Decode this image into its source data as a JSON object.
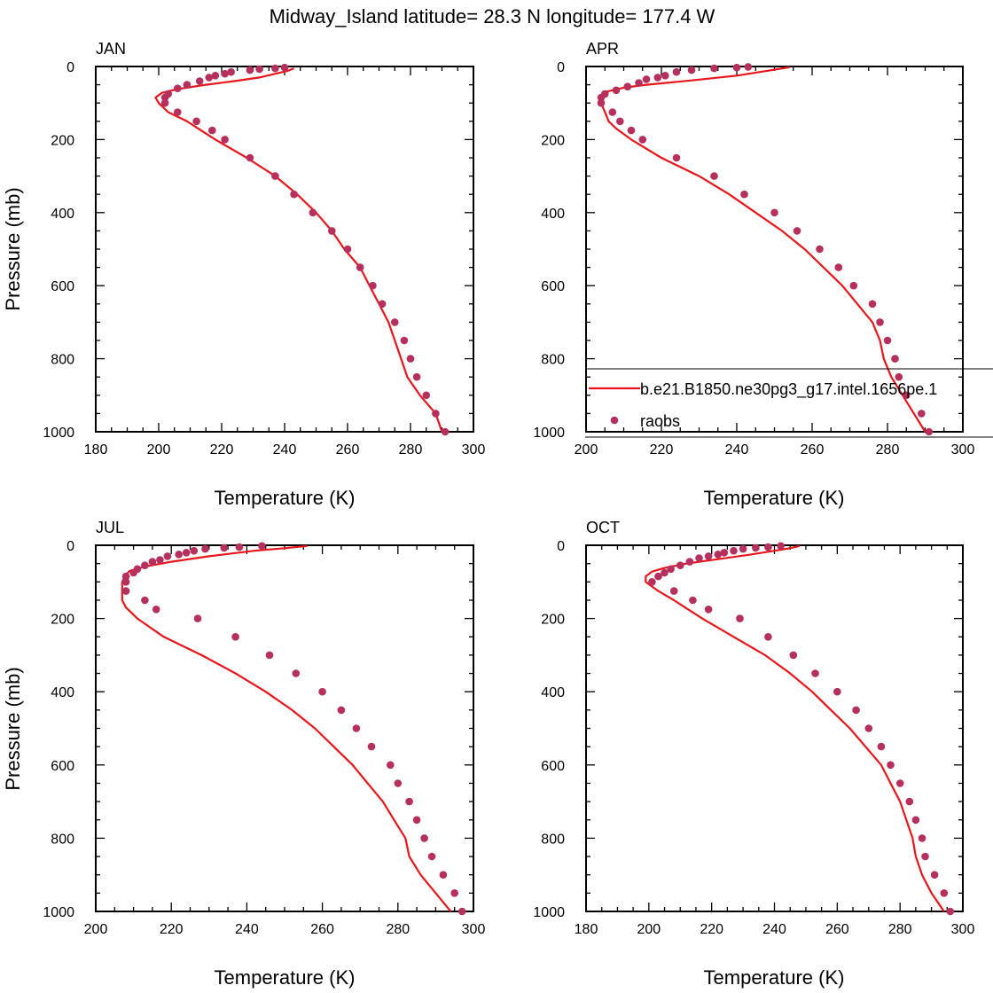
{
  "figure_title": "Midway_Island  latitude= 28.3 N longitude= 177.4 W",
  "colors": {
    "model_line": "#e8161b",
    "raobs_marker": "#b5305c",
    "axis": "#000000"
  },
  "chart_data": [
    {
      "type": "line",
      "panel_label": "JAN",
      "xlabel": "Temperature (K)",
      "ylabel": "Pressure (mb)",
      "xlim": [
        180,
        300
      ],
      "ylim": [
        1000,
        0
      ],
      "xticks": [
        180,
        200,
        220,
        240,
        260,
        280,
        300
      ],
      "yticks": [
        0,
        200,
        400,
        600,
        800,
        1000
      ],
      "series": [
        {
          "name": "b.e21.B1850.ne30pg3_g17.intel.1656pe.1",
          "kind": "line",
          "points": [
            [
              290,
              1000
            ],
            [
              288,
              950
            ],
            [
              283,
              900
            ],
            [
              279,
              850
            ],
            [
              277,
              800
            ],
            [
              275,
              750
            ],
            [
              273,
              700
            ],
            [
              270,
              650
            ],
            [
              267,
              600
            ],
            [
              264,
              550
            ],
            [
              259,
              500
            ],
            [
              255,
              450
            ],
            [
              250,
              400
            ],
            [
              244,
              350
            ],
            [
              237,
              300
            ],
            [
              228,
              250
            ],
            [
              218,
              200
            ],
            [
              209,
              150
            ],
            [
              203,
              125
            ],
            [
              200,
              100
            ],
            [
              199,
              85
            ],
            [
              201,
              72
            ],
            [
              206,
              62
            ],
            [
              215,
              50
            ],
            [
              224,
              40
            ],
            [
              232,
              30
            ],
            [
              237,
              20
            ],
            [
              241,
              12
            ],
            [
              243,
              5
            ]
          ]
        },
        {
          "name": "raobs",
          "kind": "scatter",
          "points": [
            [
              291,
              1000
            ],
            [
              288,
              950
            ],
            [
              285,
              900
            ],
            [
              282,
              850
            ],
            [
              280,
              800
            ],
            [
              278,
              750
            ],
            [
              275,
              700
            ],
            [
              271,
              650
            ],
            [
              268,
              600
            ],
            [
              264,
              550
            ],
            [
              260,
              500
            ],
            [
              255,
              450
            ],
            [
              249,
              400
            ],
            [
              243,
              350
            ],
            [
              237,
              300
            ],
            [
              229,
              250
            ],
            [
              221,
              200
            ],
            [
              217,
              175
            ],
            [
              212,
              150
            ],
            [
              206,
              125
            ],
            [
              202,
              100
            ],
            [
              202,
              85
            ],
            [
              203,
              75
            ],
            [
              206,
              60
            ],
            [
              209,
              50
            ],
            [
              213,
              40
            ],
            [
              216,
              30
            ],
            [
              218,
              25
            ],
            [
              221,
              20
            ],
            [
              223,
              15
            ],
            [
              229,
              10
            ],
            [
              232,
              7
            ],
            [
              237,
              5
            ],
            [
              240,
              3
            ]
          ]
        }
      ]
    },
    {
      "type": "line",
      "panel_label": "APR",
      "xlabel": "Temperature (K)",
      "ylabel": "",
      "xlim": [
        200,
        300
      ],
      "ylim": [
        1000,
        0
      ],
      "xticks": [
        200,
        220,
        240,
        260,
        280,
        300
      ],
      "yticks": [
        0,
        200,
        400,
        600,
        800,
        1000
      ],
      "series": [
        {
          "name": "b.e21.B1850.ne30pg3_g17.intel.1656pe.1",
          "kind": "line",
          "points": [
            [
              290,
              1000
            ],
            [
              287,
              950
            ],
            [
              284,
              900
            ],
            [
              281,
              850
            ],
            [
              279,
              800
            ],
            [
              278,
              750
            ],
            [
              276,
              700
            ],
            [
              272,
              650
            ],
            [
              268,
              600
            ],
            [
              263,
              550
            ],
            [
              258,
              500
            ],
            [
              252,
              450
            ],
            [
              245,
              400
            ],
            [
              238,
              350
            ],
            [
              230,
              300
            ],
            [
              220,
              250
            ],
            [
              212,
              200
            ],
            [
              208,
              170
            ],
            [
              206,
              150
            ],
            [
              205,
              125
            ],
            [
              204,
              100
            ],
            [
              204,
              80
            ],
            [
              205,
              70
            ],
            [
              210,
              58
            ],
            [
              216,
              50
            ],
            [
              228,
              38
            ],
            [
              240,
              25
            ],
            [
              248,
              12
            ],
            [
              254,
              2
            ]
          ]
        },
        {
          "name": "raobs",
          "kind": "scatter",
          "points": [
            [
              291,
              1000
            ],
            [
              289,
              950
            ],
            [
              285,
              900
            ],
            [
              283,
              850
            ],
            [
              282,
              800
            ],
            [
              280,
              750
            ],
            [
              278,
              700
            ],
            [
              276,
              650
            ],
            [
              271,
              600
            ],
            [
              267,
              550
            ],
            [
              262,
              500
            ],
            [
              256,
              450
            ],
            [
              250,
              400
            ],
            [
              242,
              350
            ],
            [
              234,
              300
            ],
            [
              224,
              250
            ],
            [
              215,
              200
            ],
            [
              212,
              175
            ],
            [
              209,
              150
            ],
            [
              207,
              125
            ],
            [
              204,
              100
            ],
            [
              204,
              85
            ],
            [
              205,
              75
            ],
            [
              208,
              65
            ],
            [
              211,
              55
            ],
            [
              214,
              45
            ],
            [
              216,
              35
            ],
            [
              219,
              30
            ],
            [
              221,
              25
            ],
            [
              224,
              15
            ],
            [
              228,
              10
            ],
            [
              234,
              5
            ],
            [
              240,
              3
            ],
            [
              243,
              1
            ]
          ]
        }
      ]
    },
    {
      "type": "line",
      "panel_label": "JUL",
      "xlabel": "Temperature (K)",
      "ylabel": "Pressure (mb)",
      "xlim": [
        200,
        300
      ],
      "ylim": [
        1000,
        0
      ],
      "xticks": [
        200,
        220,
        240,
        260,
        280,
        300
      ],
      "yticks": [
        0,
        200,
        400,
        600,
        800,
        1000
      ],
      "series": [
        {
          "name": "b.e21.B1850.ne30pg3_g17.intel.1656pe.1",
          "kind": "line",
          "points": [
            [
              294,
              1000
            ],
            [
              290,
              950
            ],
            [
              286,
              900
            ],
            [
              283,
              850
            ],
            [
              282,
              800
            ],
            [
              279,
              750
            ],
            [
              276,
              700
            ],
            [
              272,
              650
            ],
            [
              268,
              600
            ],
            [
              263,
              550
            ],
            [
              258,
              500
            ],
            [
              252,
              450
            ],
            [
              245,
              400
            ],
            [
              237,
              350
            ],
            [
              228,
              300
            ],
            [
              218,
              250
            ],
            [
              211,
              200
            ],
            [
              208,
              170
            ],
            [
              207,
              150
            ],
            [
              207,
              125
            ],
            [
              207,
              100
            ],
            [
              208,
              80
            ],
            [
              209,
              70
            ],
            [
              213,
              58
            ],
            [
              220,
              45
            ],
            [
              230,
              30
            ],
            [
              242,
              15
            ],
            [
              250,
              8
            ],
            [
              256,
              2
            ]
          ]
        },
        {
          "name": "raobs",
          "kind": "scatter",
          "points": [
            [
              297,
              1000
            ],
            [
              295,
              950
            ],
            [
              292,
              900
            ],
            [
              289,
              850
            ],
            [
              287,
              800
            ],
            [
              285,
              750
            ],
            [
              283,
              700
            ],
            [
              280,
              650
            ],
            [
              278,
              600
            ],
            [
              273,
              550
            ],
            [
              269,
              500
            ],
            [
              265,
              450
            ],
            [
              260,
              400
            ],
            [
              253,
              350
            ],
            [
              246,
              300
            ],
            [
              237,
              250
            ],
            [
              227,
              200
            ],
            [
              216,
              175
            ],
            [
              213,
              150
            ],
            [
              208,
              125
            ],
            [
              208,
              100
            ],
            [
              208,
              85
            ],
            [
              210,
              75
            ],
            [
              211,
              65
            ],
            [
              213,
              55
            ],
            [
              215,
              45
            ],
            [
              217,
              40
            ],
            [
              219,
              30
            ],
            [
              222,
              25
            ],
            [
              224,
              20
            ],
            [
              226,
              15
            ],
            [
              229,
              10
            ],
            [
              234,
              7
            ],
            [
              238,
              5
            ],
            [
              244,
              2
            ]
          ]
        }
      ]
    },
    {
      "type": "line",
      "panel_label": "OCT",
      "xlabel": "Temperature (K)",
      "ylabel": "",
      "xlim": [
        180,
        300
      ],
      "ylim": [
        1000,
        0
      ],
      "xticks": [
        180,
        200,
        220,
        240,
        260,
        280,
        300
      ],
      "yticks": [
        0,
        200,
        400,
        600,
        800,
        1000
      ],
      "series": [
        {
          "name": "b.e21.B1850.ne30pg3_g17.intel.1656pe.1",
          "kind": "line",
          "points": [
            [
              294,
              1000
            ],
            [
              290,
              950
            ],
            [
              287,
              900
            ],
            [
              285,
              850
            ],
            [
              284,
              800
            ],
            [
              282,
              750
            ],
            [
              280,
              700
            ],
            [
              277,
              650
            ],
            [
              274,
              600
            ],
            [
              269,
              550
            ],
            [
              264,
              500
            ],
            [
              258,
              450
            ],
            [
              252,
              400
            ],
            [
              245,
              350
            ],
            [
              237,
              300
            ],
            [
              227,
              250
            ],
            [
              217,
              200
            ],
            [
              208,
              150
            ],
            [
              203,
              125
            ],
            [
              199,
              100
            ],
            [
              199,
              85
            ],
            [
              201,
              72
            ],
            [
              205,
              62
            ],
            [
              212,
              50
            ],
            [
              222,
              38
            ],
            [
              232,
              26
            ],
            [
              240,
              15
            ],
            [
              245,
              8
            ],
            [
              248,
              2
            ]
          ]
        },
        {
          "name": "raobs",
          "kind": "scatter",
          "points": [
            [
              296,
              1000
            ],
            [
              294,
              950
            ],
            [
              291,
              900
            ],
            [
              288,
              850
            ],
            [
              287,
              800
            ],
            [
              285,
              750
            ],
            [
              283,
              700
            ],
            [
              280,
              650
            ],
            [
              277,
              600
            ],
            [
              274,
              550
            ],
            [
              270,
              500
            ],
            [
              266,
              450
            ],
            [
              260,
              400
            ],
            [
              253,
              350
            ],
            [
              246,
              300
            ],
            [
              238,
              250
            ],
            [
              229,
              200
            ],
            [
              219,
              175
            ],
            [
              214,
              150
            ],
            [
              208,
              125
            ],
            [
              201,
              100
            ],
            [
              203,
              85
            ],
            [
              205,
              75
            ],
            [
              207,
              65
            ],
            [
              210,
              55
            ],
            [
              213,
              45
            ],
            [
              216,
              35
            ],
            [
              219,
              30
            ],
            [
              222,
              25
            ],
            [
              224,
              20
            ],
            [
              227,
              15
            ],
            [
              230,
              10
            ],
            [
              234,
              7
            ],
            [
              238,
              5
            ],
            [
              242,
              2
            ]
          ]
        }
      ]
    }
  ],
  "legend": {
    "placement": "inside APR panel, lower part, extending past right edge",
    "entries": [
      {
        "label": "b.e21.B1850.ne30pg3_g17.intel.1656pe.1",
        "kind": "line"
      },
      {
        "label": "raobs",
        "kind": "marker"
      }
    ]
  }
}
